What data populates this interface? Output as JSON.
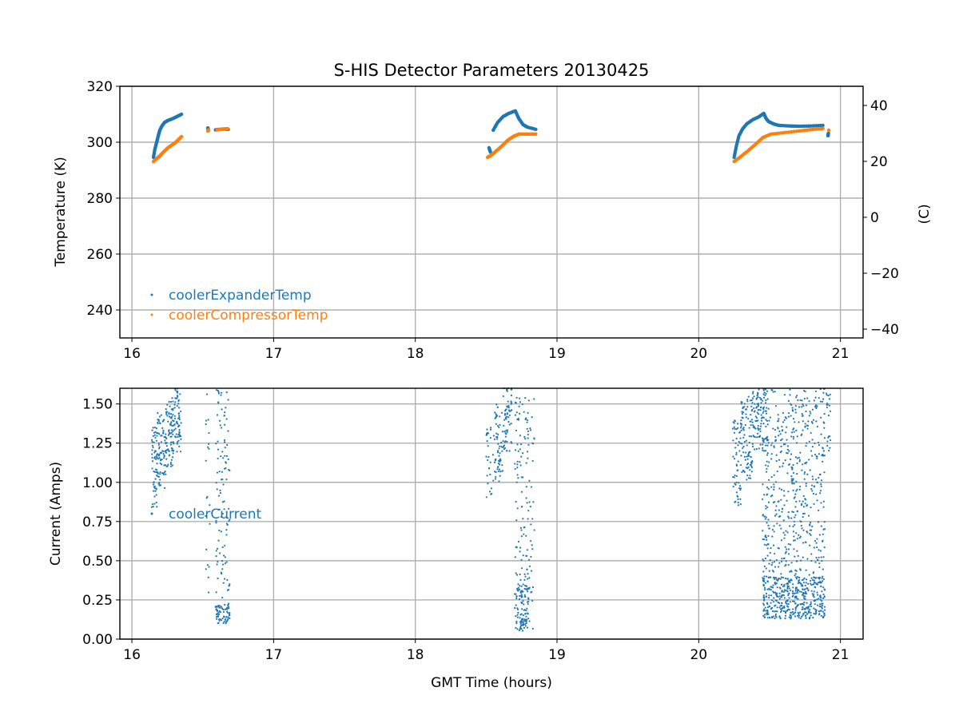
{
  "chart_data": [
    {
      "type": "scatter",
      "title": "S-HIS Detector Parameters 20130425",
      "xlabel": "",
      "ylabel": "Temperature (K)",
      "ylabel_right": "(C)",
      "xlim": [
        15.915,
        21.16
      ],
      "ylim": [
        230,
        320
      ],
      "ylim_right": [
        -43.15,
        46.85
      ],
      "xticks": [
        "16",
        "17",
        "18",
        "19",
        "20",
        "21"
      ],
      "yticks": [
        "240",
        "260",
        "280",
        "300",
        "320"
      ],
      "yticks_right": [
        "−40",
        "−20",
        "0",
        "20",
        "40"
      ],
      "grid": true,
      "legend_position": "lower-left",
      "series": [
        {
          "name": "coolerExpanderTemp",
          "color": "#1f77b4",
          "segments": [
            [
              [
                16.152,
                294.6
              ],
              [
                16.162,
                297.5
              ],
              [
                16.175,
                300
              ],
              [
                16.186,
                302.3
              ],
              [
                16.197,
                304.3
              ],
              [
                16.213,
                305.9
              ],
              [
                16.231,
                307.1
              ],
              [
                16.255,
                307.8
              ],
              [
                16.282,
                308.3
              ],
              [
                16.315,
                309.1
              ],
              [
                16.35,
                310
              ]
            ],
            [
              [
                16.536,
                305.1
              ],
              [
                16.54,
                304.3
              ]
            ],
            [
              [
                16.59,
                304.4
              ],
              [
                16.62,
                304.6
              ],
              [
                16.65,
                304.7
              ],
              [
                16.68,
                304.6
              ]
            ],
            [
              [
                18.52,
                298
              ],
              [
                18.53,
                296.5
              ]
            ],
            [
              [
                18.55,
                304.3
              ],
              [
                18.58,
                307
              ],
              [
                18.62,
                309.2
              ],
              [
                18.66,
                310.3
              ],
              [
                18.706,
                311.2
              ],
              [
                18.73,
                308.5
              ],
              [
                18.76,
                306.3
              ],
              [
                18.79,
                305.4
              ],
              [
                18.85,
                304.6
              ]
            ],
            [
              [
                20.25,
                294.6
              ],
              [
                20.265,
                298.5
              ],
              [
                20.284,
                302.3
              ],
              [
                20.31,
                304.8
              ],
              [
                20.34,
                306.6
              ],
              [
                20.38,
                308
              ],
              [
                20.425,
                309.1
              ],
              [
                20.459,
                310.3
              ],
              [
                20.475,
                308.5
              ],
              [
                20.493,
                307.4
              ],
              [
                20.53,
                306.5
              ],
              [
                20.566,
                306
              ],
              [
                20.64,
                305.8
              ],
              [
                20.707,
                305.7
              ],
              [
                20.79,
                305.8
              ],
              [
                20.876,
                306
              ]
            ],
            [
              [
                20.912,
                302.3
              ],
              [
                20.915,
                303.2
              ]
            ]
          ]
        },
        {
          "name": "coolerCompressorTemp",
          "color": "#ff7f0e",
          "segments": [
            [
              [
                16.152,
                293.1
              ],
              [
                16.175,
                294.2
              ],
              [
                16.197,
                295.1
              ],
              [
                16.225,
                296.6
              ],
              [
                16.254,
                298
              ],
              [
                16.282,
                299
              ],
              [
                16.31,
                300
              ],
              [
                16.33,
                301
              ],
              [
                16.35,
                302
              ]
            ],
            [
              [
                16.536,
                304
              ],
              [
                16.54,
                304.4
              ]
            ],
            [
              [
                16.6,
                304.4
              ],
              [
                16.64,
                304.7
              ],
              [
                16.676,
                304.8
              ]
            ],
            [
              [
                18.51,
                294.6
              ],
              [
                18.54,
                295.5
              ],
              [
                18.565,
                296.6
              ],
              [
                18.61,
                298.6
              ],
              [
                18.65,
                300.6
              ],
              [
                18.69,
                302
              ],
              [
                18.73,
                302.9
              ],
              [
                18.79,
                302.9
              ],
              [
                18.85,
                302.9
              ]
            ],
            [
              [
                20.25,
                293.1
              ],
              [
                20.29,
                294.6
              ],
              [
                20.34,
                296.6
              ],
              [
                20.4,
                299.2
              ],
              [
                20.453,
                301.7
              ],
              [
                20.51,
                302.9
              ],
              [
                20.6,
                303.4
              ],
              [
                20.707,
                304
              ],
              [
                20.79,
                304.5
              ],
              [
                20.876,
                304.9
              ]
            ],
            [
              [
                20.918,
                304.3
              ]
            ]
          ]
        }
      ]
    },
    {
      "type": "scatter",
      "title": "",
      "xlabel": "GMT Time (hours)",
      "ylabel": "Current (Amps)",
      "xlim": [
        15.915,
        21.16
      ],
      "ylim": [
        0,
        1.6
      ],
      "xticks": [
        "16",
        "17",
        "18",
        "19",
        "20",
        "21"
      ],
      "yticks": [
        "0.00",
        "0.25",
        "0.50",
        "0.75",
        "1.00",
        "1.25",
        "1.50"
      ],
      "grid": true,
      "legend_position": "center-left",
      "series": [
        {
          "name": "coolerCurrent",
          "color": "#1f77b4",
          "point_bands": [
            {
              "x": [
                16.14,
                16.18
              ],
              "y": [
                0.82,
                1.35
              ],
              "n": 60
            },
            {
              "x": [
                16.18,
                16.24
              ],
              "y": [
                0.95,
                1.45
              ],
              "n": 80
            },
            {
              "x": [
                16.24,
                16.3
              ],
              "y": [
                1.1,
                1.55
              ],
              "n": 80
            },
            {
              "x": [
                16.3,
                16.35
              ],
              "y": [
                1.18,
                1.6
              ],
              "n": 60
            },
            {
              "x": [
                16.52,
                16.55
              ],
              "y": [
                0.1,
                1.6
              ],
              "n": 20
            },
            {
              "x": [
                16.59,
                16.69
              ],
              "y": [
                0.1,
                1.6
              ],
              "n": 110
            },
            {
              "x": [
                16.59,
                16.69
              ],
              "y": [
                0.1,
                0.22
              ],
              "n": 60
            },
            {
              "x": [
                18.5,
                18.56
              ],
              "y": [
                0.9,
                1.35
              ],
              "n": 30
            },
            {
              "x": [
                18.56,
                18.62
              ],
              "y": [
                1.0,
                1.5
              ],
              "n": 60
            },
            {
              "x": [
                18.62,
                18.68
              ],
              "y": [
                1.2,
                1.6
              ],
              "n": 60
            },
            {
              "x": [
                18.7,
                18.84
              ],
              "y": [
                0.05,
                1.6
              ],
              "n": 150
            },
            {
              "x": [
                18.7,
                18.8
              ],
              "y": [
                0.05,
                0.35
              ],
              "n": 90
            },
            {
              "x": [
                20.24,
                20.3
              ],
              "y": [
                0.85,
                1.4
              ],
              "n": 60
            },
            {
              "x": [
                20.3,
                20.38
              ],
              "y": [
                1.0,
                1.55
              ],
              "n": 90
            },
            {
              "x": [
                20.38,
                20.48
              ],
              "y": [
                1.2,
                1.6
              ],
              "n": 100
            },
            {
              "x": [
                20.45,
                20.89
              ],
              "y": [
                0.13,
                1.6
              ],
              "n": 650
            },
            {
              "x": [
                20.45,
                20.89
              ],
              "y": [
                0.13,
                0.4
              ],
              "n": 320
            },
            {
              "x": [
                20.9,
                20.93
              ],
              "y": [
                1.2,
                1.6
              ],
              "n": 20
            }
          ]
        }
      ]
    }
  ]
}
